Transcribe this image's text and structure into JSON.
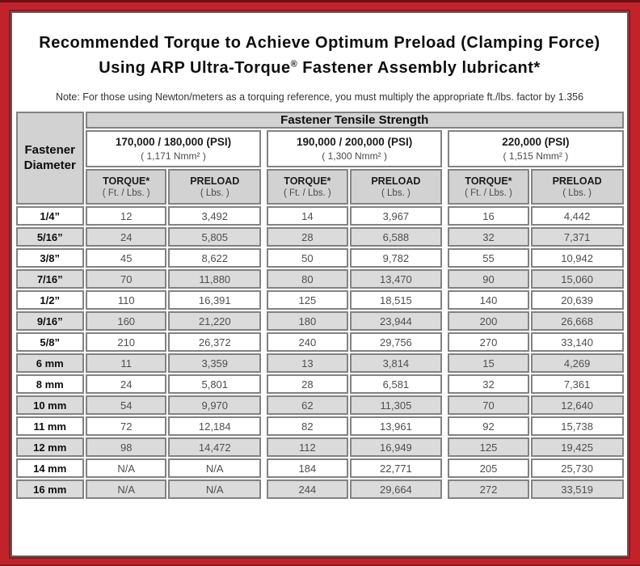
{
  "header": {
    "title_line1": "Recommended Torque to Achieve Optimum Preload (Clamping Force)",
    "title_line2_pre": "Using ARP Ultra-Torque",
    "title_reg_mark": "®",
    "title_line2_post": " Fastener Assembly lubricant*",
    "note": "Note: For those using Newton/meters as a torquing reference, you must multiply the appropriate ft./lbs. factor by 1.356"
  },
  "table": {
    "tensile_header": "Fastener Tensile Strength",
    "corner_line1": "Fastener",
    "corner_line2": "Diameter",
    "groups": [
      {
        "psi": "170,000 / 180,000 (PSI)",
        "nmm": "( 1,171 Nmm² )"
      },
      {
        "psi": "190,000 / 200,000 (PSI)",
        "nmm": "( 1,300 Nmm² )"
      },
      {
        "psi": "220,000 (PSI)",
        "nmm": "( 1,515 Nmm² )"
      }
    ],
    "col_headers": {
      "torque": "TORQUE*",
      "torque_unit": "( Ft. / Lbs. )",
      "preload": "PRELOAD",
      "preload_unit": "( Lbs. )"
    },
    "rows": [
      {
        "diameter": "1/4”",
        "values": [
          "12",
          "3,492",
          "14",
          "3,967",
          "16",
          "4,442"
        ]
      },
      {
        "diameter": "5/16”",
        "values": [
          "24",
          "5,805",
          "28",
          "6,588",
          "32",
          "7,371"
        ]
      },
      {
        "diameter": "3/8”",
        "values": [
          "45",
          "8,622",
          "50",
          "9,782",
          "55",
          "10,942"
        ]
      },
      {
        "diameter": "7/16”",
        "values": [
          "70",
          "11,880",
          "80",
          "13,470",
          "90",
          "15,060"
        ]
      },
      {
        "diameter": "1/2”",
        "values": [
          "110",
          "16,391",
          "125",
          "18,515",
          "140",
          "20,639"
        ]
      },
      {
        "diameter": "9/16”",
        "values": [
          "160",
          "21,220",
          "180",
          "23,944",
          "200",
          "26,668"
        ]
      },
      {
        "diameter": "5/8”",
        "values": [
          "210",
          "26,372",
          "240",
          "29,756",
          "270",
          "33,140"
        ]
      },
      {
        "diameter": "6 mm",
        "values": [
          "11",
          "3,359",
          "13",
          "3,814",
          "15",
          "4,269"
        ]
      },
      {
        "diameter": "8 mm",
        "values": [
          "24",
          "5,801",
          "28",
          "6,581",
          "32",
          "7,361"
        ]
      },
      {
        "diameter": "10 mm",
        "values": [
          "54",
          "9,970",
          "62",
          "11,305",
          "70",
          "12,640"
        ]
      },
      {
        "diameter": "11 mm",
        "values": [
          "72",
          "12,184",
          "82",
          "13,961",
          "92",
          "15,738"
        ]
      },
      {
        "diameter": "12 mm",
        "values": [
          "98",
          "14,472",
          "112",
          "16,949",
          "125",
          "19,425"
        ]
      },
      {
        "diameter": "14 mm",
        "values": [
          "N/A",
          "N/A",
          "184",
          "22,771",
          "205",
          "25,730"
        ]
      },
      {
        "diameter": "16 mm",
        "values": [
          "N/A",
          "N/A",
          "244",
          "29,664",
          "272",
          "33,519"
        ]
      }
    ]
  },
  "colors": {
    "frame_red": "#c2232b",
    "frame_dark_red": "#6c1013",
    "panel_border_gray": "#5c5d61",
    "cell_border_gray": "#828282",
    "header_gray": "#d2d2d2",
    "alt_row_gray": "#dbdbdb"
  }
}
